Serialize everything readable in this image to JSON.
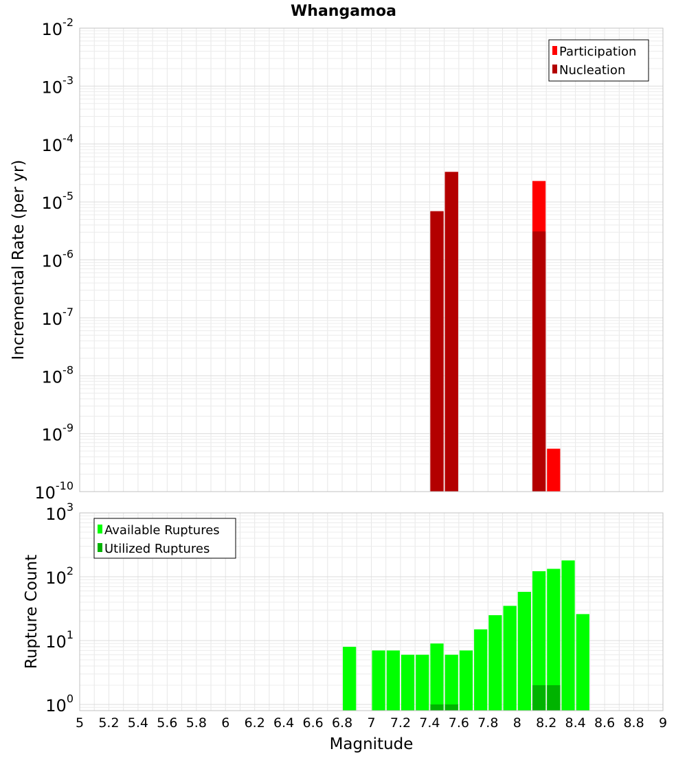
{
  "title": "Whangamoa",
  "colors": {
    "participation": "#ff0000",
    "nucleation": "#b30000",
    "available": "#00ff00",
    "utilized": "#00b300",
    "grid": "#e6e6e6",
    "frame": "#c0c0c0"
  },
  "chart_data": [
    {
      "type": "bar",
      "id": "rates",
      "ylabel": "Incremental Rate (per yr)",
      "yscale": "log",
      "ylim": [
        1e-10,
        0.01
      ],
      "xlim": [
        5,
        9
      ],
      "bin_width": 0.1,
      "y_ticks": [
        {
          "value": 1e-10,
          "base": "10",
          "exp": "-10"
        },
        {
          "value": 1e-09,
          "base": "10",
          "exp": "-9"
        },
        {
          "value": 1e-08,
          "base": "10",
          "exp": "-8"
        },
        {
          "value": 1e-07,
          "base": "10",
          "exp": "-7"
        },
        {
          "value": 1e-06,
          "base": "10",
          "exp": "-6"
        },
        {
          "value": 1e-05,
          "base": "10",
          "exp": "-5"
        },
        {
          "value": 0.0001,
          "base": "10",
          "exp": "-4"
        },
        {
          "value": 0.001,
          "base": "10",
          "exp": "-3"
        },
        {
          "value": 0.01,
          "base": "10",
          "exp": "-2"
        }
      ],
      "legend": {
        "position": "top-right",
        "entries": [
          "Participation",
          "Nucleation"
        ]
      },
      "series": [
        {
          "name": "Participation",
          "color_key": "participation",
          "points": [
            {
              "x": 7.45,
              "y": 6.9e-06
            },
            {
              "x": 7.55,
              "y": 3.3e-05
            },
            {
              "x": 8.15,
              "y": 2.3e-05
            },
            {
              "x": 8.25,
              "y": 5.5e-10
            }
          ]
        },
        {
          "name": "Nucleation",
          "color_key": "nucleation",
          "points": [
            {
              "x": 7.45,
              "y": 6.9e-06
            },
            {
              "x": 7.55,
              "y": 3.3e-05
            },
            {
              "x": 8.15,
              "y": 3.1e-06
            }
          ]
        }
      ],
      "grid": true
    },
    {
      "type": "bar",
      "id": "counts",
      "ylabel": "Rupture Count",
      "xlabel": "Magnitude",
      "yscale": "log",
      "ylim": [
        0.8,
        1000
      ],
      "xlim": [
        5,
        9
      ],
      "bin_width": 0.1,
      "y_ticks": [
        {
          "value": 1,
          "base": "10",
          "exp": "0"
        },
        {
          "value": 10,
          "base": "10",
          "exp": "1"
        },
        {
          "value": 100,
          "base": "10",
          "exp": "2"
        },
        {
          "value": 1000,
          "base": "10",
          "exp": "3"
        }
      ],
      "x_ticks": [
        "5",
        "5.2",
        "5.4",
        "5.6",
        "5.8",
        "6",
        "6.2",
        "6.4",
        "6.6",
        "6.8",
        "7",
        "7.2",
        "7.4",
        "7.6",
        "7.8",
        "8",
        "8.2",
        "8.4",
        "8.6",
        "8.8",
        "9"
      ],
      "legend": {
        "position": "top-left",
        "entries": [
          "Available Ruptures",
          "Utilized Ruptures"
        ]
      },
      "series": [
        {
          "name": "Available Ruptures",
          "color_key": "available",
          "points": [
            {
              "x": 6.85,
              "y": 8
            },
            {
              "x": 7.05,
              "y": 7
            },
            {
              "x": 7.15,
              "y": 7
            },
            {
              "x": 7.25,
              "y": 6
            },
            {
              "x": 7.35,
              "y": 6
            },
            {
              "x": 7.45,
              "y": 9
            },
            {
              "x": 7.55,
              "y": 6
            },
            {
              "x": 7.65,
              "y": 7
            },
            {
              "x": 7.75,
              "y": 15
            },
            {
              "x": 7.85,
              "y": 25
            },
            {
              "x": 7.95,
              "y": 35
            },
            {
              "x": 8.05,
              "y": 58
            },
            {
              "x": 8.15,
              "y": 122
            },
            {
              "x": 8.25,
              "y": 133
            },
            {
              "x": 8.35,
              "y": 180
            },
            {
              "x": 8.45,
              "y": 26
            }
          ]
        },
        {
          "name": "Utilized Ruptures",
          "color_key": "utilized",
          "points": [
            {
              "x": 7.45,
              "y": 1
            },
            {
              "x": 7.55,
              "y": 1
            },
            {
              "x": 8.15,
              "y": 2
            },
            {
              "x": 8.25,
              "y": 2
            }
          ]
        }
      ],
      "grid": true
    }
  ]
}
